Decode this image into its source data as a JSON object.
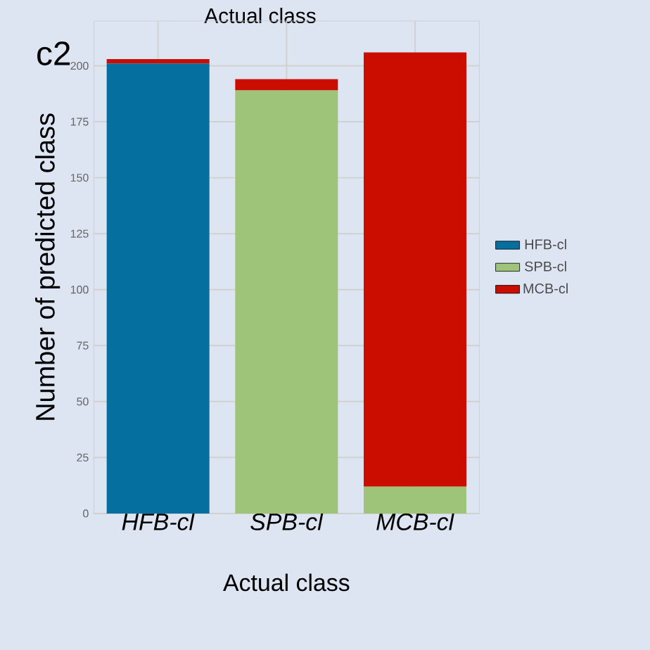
{
  "chart_data": {
    "type": "bar",
    "title": "Actual class",
    "xlabel": "Actual class",
    "ylabel": "Number of predicted class",
    "annotations": [
      "c2"
    ],
    "categories": [
      "*HFB-cl*",
      "*SPB-cl*",
      "*MCB-cl*"
    ],
    "series": [
      {
        "name": "HFB-cl",
        "color": "#0570a0",
        "values": [
          201,
          0,
          0
        ]
      },
      {
        "name": "SPB-cl",
        "color": "#9ec47a",
        "values": [
          0,
          189,
          12
        ]
      },
      {
        "name": "MCB-cl",
        "color": "#cb0d00",
        "values": [
          2,
          5,
          194
        ]
      }
    ],
    "stacked": true,
    "ylim": [
      0,
      220
    ],
    "yticks": [
      0,
      25,
      50,
      75,
      100,
      125,
      150,
      175,
      200
    ],
    "grid": true,
    "legend": "right"
  }
}
